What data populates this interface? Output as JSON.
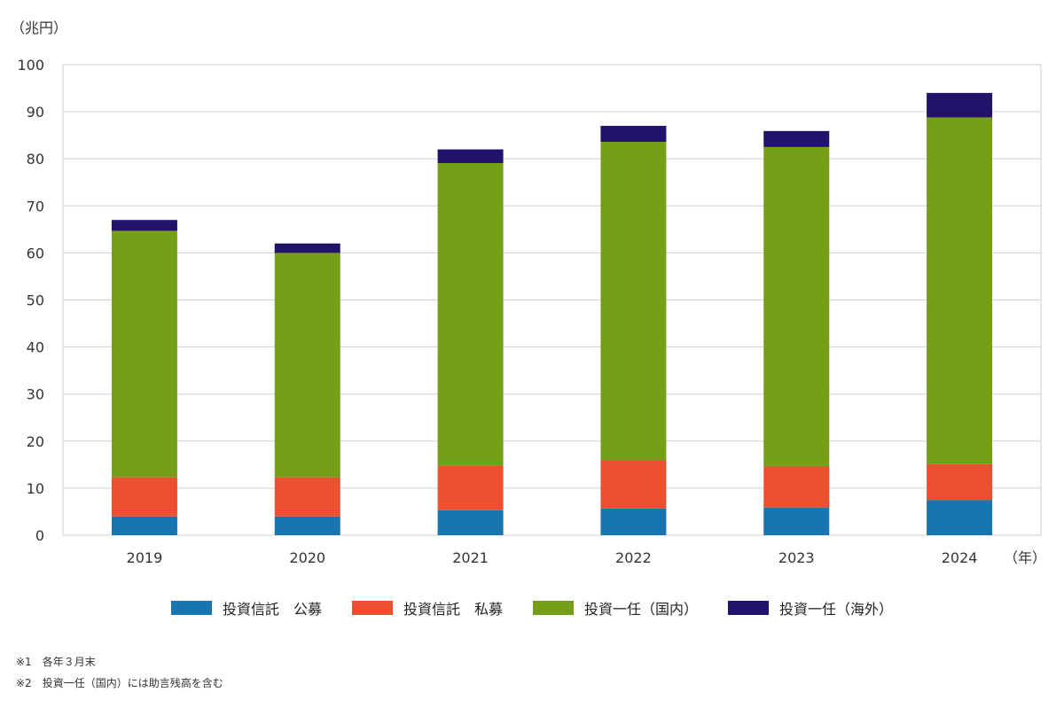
{
  "chart_data": {
    "type": "bar",
    "stacked": true,
    "y_unit_label": "（兆円）",
    "x_unit_label": "（年）",
    "categories": [
      "2019",
      "2020",
      "2021",
      "2022",
      "2023",
      "2024"
    ],
    "ylim": [
      0,
      100
    ],
    "yticks": [
      0,
      10,
      20,
      30,
      40,
      50,
      60,
      70,
      80,
      90,
      100
    ],
    "grid": true,
    "legend_position": "bottom",
    "series": [
      {
        "name": "投資信託　公募",
        "color": "#1775b0",
        "values": [
          4.0,
          4.0,
          5.3,
          5.7,
          5.9,
          7.5
        ]
      },
      {
        "name": "投資信託　私募",
        "color": "#ee4f2f",
        "values": [
          8.3,
          8.3,
          9.4,
          10.3,
          8.7,
          7.6
        ]
      },
      {
        "name": "投資一任（国内）",
        "color": "#759f16",
        "values": [
          52.4,
          47.7,
          64.4,
          67.6,
          67.9,
          73.7
        ]
      },
      {
        "name": "投資一任（海外）",
        "color": "#22126b",
        "values": [
          2.3,
          2.0,
          2.9,
          3.4,
          3.4,
          5.2
        ]
      }
    ]
  },
  "notes": [
    "※1　各年３月末",
    "※2　投資一任（国内）には助言残高を含む"
  ]
}
